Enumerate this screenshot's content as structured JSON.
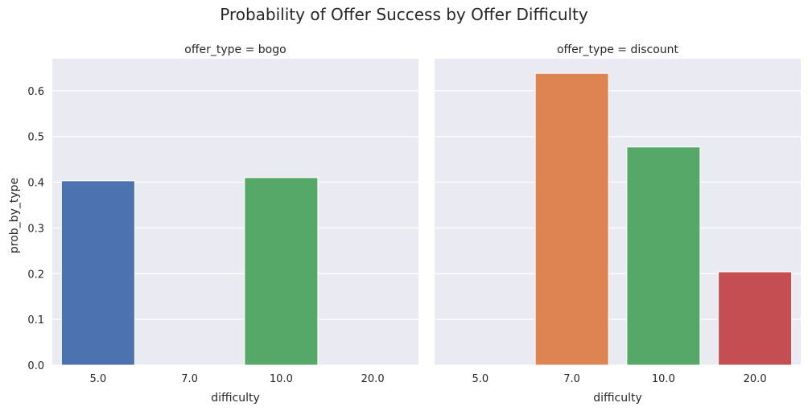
{
  "chart_data": {
    "type": "bar",
    "title": "Probability of Offer Success by Offer Difficulty",
    "ylabel": "prob_by_type",
    "xlabel": "difficulty",
    "ylim": [
      0,
      0.67
    ],
    "yticks": [
      "0.0",
      "0.1",
      "0.2",
      "0.3",
      "0.4",
      "0.5",
      "0.6"
    ],
    "categories": [
      "5.0",
      "7.0",
      "10.0",
      "20.0"
    ],
    "grid": true,
    "colors": [
      "#4c72b0",
      "#dd8452",
      "#55a868",
      "#c44e52"
    ],
    "background": "#eaeaf2",
    "facets": [
      {
        "title": "offer_type = bogo",
        "values": [
          0.403,
          null,
          0.41,
          null
        ]
      },
      {
        "title": "offer_type = discount",
        "values": [
          null,
          0.638,
          0.477,
          0.204
        ]
      }
    ]
  }
}
